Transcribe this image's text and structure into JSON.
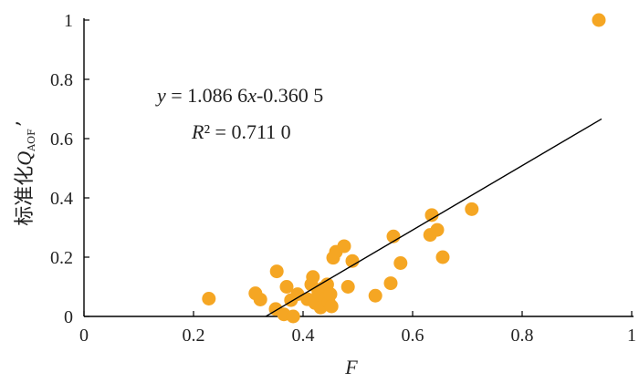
{
  "chart_data": {
    "type": "scatter",
    "xlabel": "F",
    "ylabel": "标准化Q_AOF’",
    "ylabel_parts": {
      "prefix": "标准化",
      "symbol": "Q",
      "subscript": "AOF",
      "suffix": "’"
    },
    "xlim": [
      0,
      1
    ],
    "ylim": [
      0,
      1
    ],
    "xticks": [
      0,
      0.2,
      0.4,
      0.6,
      0.8,
      1
    ],
    "yticks": [
      0,
      0.2,
      0.4,
      0.6,
      0.8,
      1
    ],
    "xtick_labels": [
      "0",
      "0.2",
      "0.4",
      "0.6",
      "0.8",
      "1"
    ],
    "ytick_labels": [
      "0",
      "0.2",
      "0.4",
      "0.6",
      "0.8",
      "1"
    ],
    "grid": false,
    "point_color": "#f5a623",
    "line_color": "#000000",
    "equation_text": "y = 1.086 6x-0.360 5",
    "r2_text": "R² = 0.711 0",
    "fit": {
      "slope": 1.0866,
      "intercept": -0.3605,
      "x_range": [
        0.332,
        0.945
      ]
    },
    "points": [
      {
        "x": 0.228,
        "y": 0.06
      },
      {
        "x": 0.313,
        "y": 0.078
      },
      {
        "x": 0.322,
        "y": 0.057
      },
      {
        "x": 0.35,
        "y": 0.025
      },
      {
        "x": 0.352,
        "y": 0.152
      },
      {
        "x": 0.365,
        "y": 0.007
      },
      {
        "x": 0.37,
        "y": 0.1
      },
      {
        "x": 0.378,
        "y": 0.055
      },
      {
        "x": 0.382,
        "y": 0.0
      },
      {
        "x": 0.39,
        "y": 0.075
      },
      {
        "x": 0.408,
        "y": 0.058
      },
      {
        "x": 0.415,
        "y": 0.108
      },
      {
        "x": 0.418,
        "y": 0.133
      },
      {
        "x": 0.422,
        "y": 0.045
      },
      {
        "x": 0.428,
        "y": 0.08
      },
      {
        "x": 0.432,
        "y": 0.03
      },
      {
        "x": 0.436,
        "y": 0.095
      },
      {
        "x": 0.44,
        "y": 0.06
      },
      {
        "x": 0.444,
        "y": 0.108
      },
      {
        "x": 0.447,
        "y": 0.048
      },
      {
        "x": 0.45,
        "y": 0.075
      },
      {
        "x": 0.452,
        "y": 0.034
      },
      {
        "x": 0.455,
        "y": 0.198
      },
      {
        "x": 0.46,
        "y": 0.218
      },
      {
        "x": 0.475,
        "y": 0.237
      },
      {
        "x": 0.482,
        "y": 0.1
      },
      {
        "x": 0.49,
        "y": 0.187
      },
      {
        "x": 0.532,
        "y": 0.07
      },
      {
        "x": 0.56,
        "y": 0.112
      },
      {
        "x": 0.565,
        "y": 0.27
      },
      {
        "x": 0.578,
        "y": 0.18
      },
      {
        "x": 0.632,
        "y": 0.275
      },
      {
        "x": 0.635,
        "y": 0.342
      },
      {
        "x": 0.645,
        "y": 0.292
      },
      {
        "x": 0.655,
        "y": 0.2
      },
      {
        "x": 0.708,
        "y": 0.362
      },
      {
        "x": 0.94,
        "y": 1.0
      }
    ]
  }
}
